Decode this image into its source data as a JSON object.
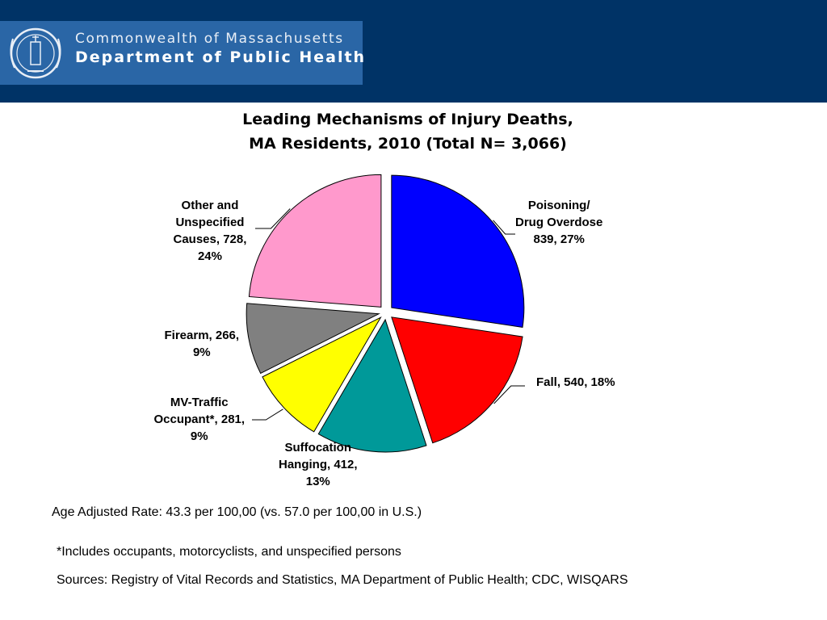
{
  "header": {
    "org_line1": "Commonwealth of Massachusetts",
    "org_line2": "Department of Public Health",
    "colors": {
      "bar": "#003366",
      "logo_bg": "#2a66a6"
    }
  },
  "chart_data": {
    "type": "pie",
    "title_line1": "Leading Mechanisms of Injury Deaths,",
    "title_line2": "MA Residents, 2010 (Total N= 3,066)",
    "total": 3066,
    "slices": [
      {
        "label": "Poisoning/ Drug Overdose",
        "value": 839,
        "percent": 27,
        "color": "#0000ff",
        "label_lines": [
          "Poisoning/",
          "Drug Overdose",
          "839, 27%"
        ]
      },
      {
        "label": "Fall",
        "value": 540,
        "percent": 18,
        "color": "#ff0000",
        "label_lines": [
          "Fall, 540, 18%"
        ]
      },
      {
        "label": "Suffocation Hanging",
        "value": 412,
        "percent": 13,
        "color": "#009999",
        "label_lines": [
          "Suffocation",
          "Hanging, 412,",
          "13%"
        ]
      },
      {
        "label": "MV-Traffic Occupant*",
        "value": 281,
        "percent": 9,
        "color": "#ffff00",
        "label_lines": [
          "MV-Traffic",
          "Occupant*, 281,",
          "9%"
        ]
      },
      {
        "label": "Firearm",
        "value": 266,
        "percent": 9,
        "color": "#808080",
        "label_lines": [
          "Firearm, 266,",
          "9%"
        ]
      },
      {
        "label": "Other and Unspecified Causes",
        "value": 728,
        "percent": 24,
        "color": "#ff99cc",
        "label_lines": [
          "Other and",
          "Unspecified",
          "Causes, 728,",
          "24%"
        ]
      }
    ]
  },
  "notes": {
    "rate": "Age Adjusted Rate: 43.3 per 100,00 (vs. 57.0 per 100,00 in U.S.)",
    "footnote": "*Includes occupants, motorcyclists, and unspecified persons",
    "sources": "Sources: Registry of Vital Records and Statistics, MA Department of Public Health; CDC, WISQARS"
  }
}
